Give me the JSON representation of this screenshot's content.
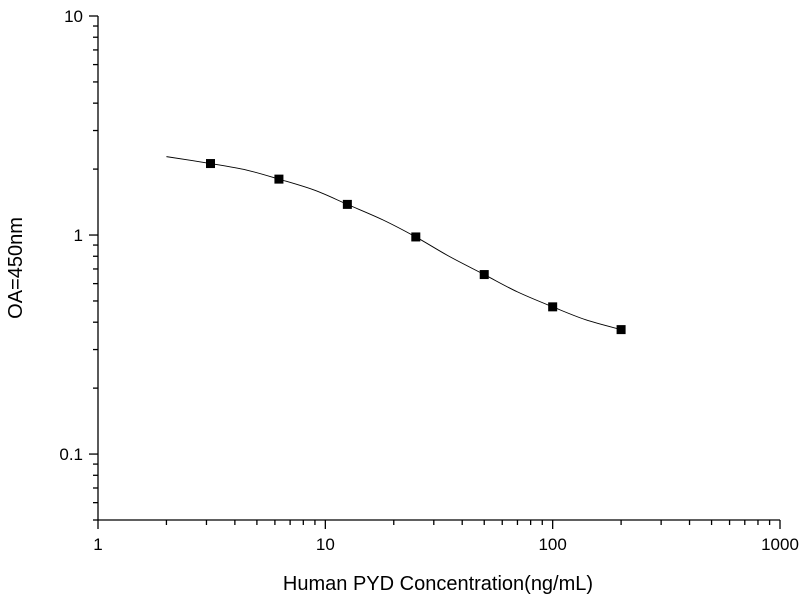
{
  "chart_data": {
    "type": "scatter",
    "title": "",
    "xlabel": "Human PYD Concentration(ng/mL)",
    "ylabel": "OA=450nm",
    "x_scale": "log",
    "y_scale": "log",
    "xlim": [
      1,
      1000
    ],
    "ylim": [
      0.05,
      10
    ],
    "x_ticks": [
      {
        "value": 1,
        "label": "1"
      },
      {
        "value": 10,
        "label": "10"
      },
      {
        "value": 100,
        "label": "100"
      },
      {
        "value": 1000,
        "label": "1000"
      }
    ],
    "y_ticks": [
      {
        "value": 0.1,
        "label": "0.1"
      },
      {
        "value": 1,
        "label": "1"
      },
      {
        "value": 10,
        "label": "10"
      }
    ],
    "grid": false,
    "legend": "none",
    "series": [
      {
        "marker": "square",
        "x": [
          3.125,
          6.25,
          12.5,
          25,
          50,
          100,
          200
        ],
        "y": [
          2.12,
          1.8,
          1.38,
          0.98,
          0.66,
          0.47,
          0.37
        ]
      }
    ],
    "fit_curve": {
      "x": [
        2,
        3.125,
        4.5,
        6.25,
        9,
        12.5,
        18,
        25,
        35,
        50,
        70,
        100,
        140,
        200
      ],
      "y": [
        2.28,
        2.12,
        1.98,
        1.8,
        1.6,
        1.38,
        1.17,
        0.98,
        0.8,
        0.66,
        0.55,
        0.47,
        0.41,
        0.37
      ]
    },
    "colors": {
      "axis": "#000000",
      "marker": "#000000",
      "curve": "#000000"
    }
  }
}
